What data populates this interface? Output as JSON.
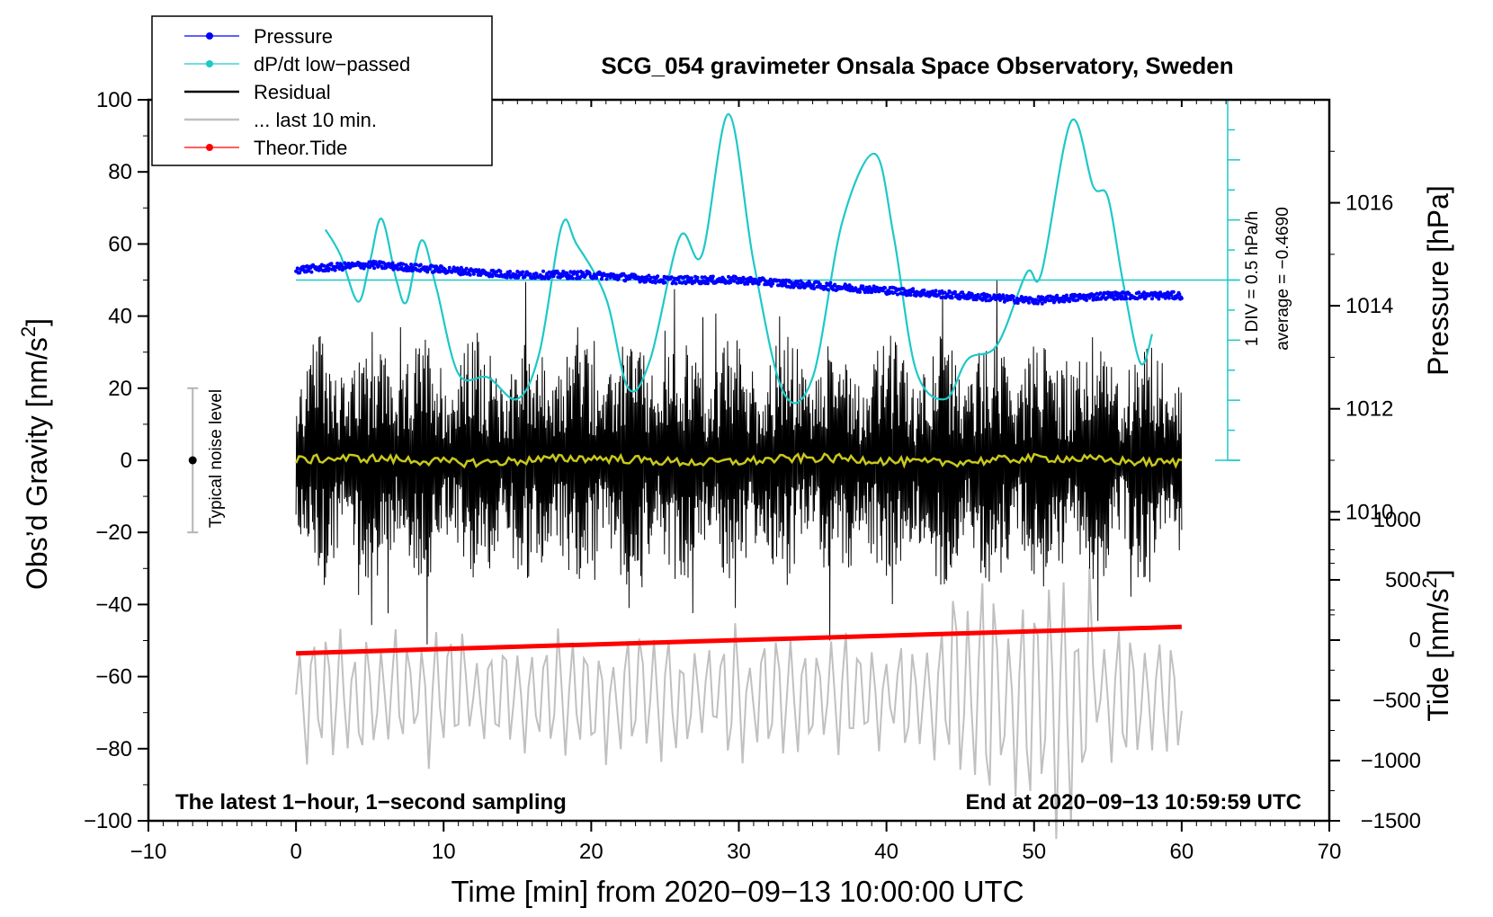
{
  "chart_data": {
    "type": "line",
    "title": "SCG_054 gravimeter Onsala Space Observatory, Sweden",
    "xlabel": "Time [min] from 2020−09−13 10:00:00 UTC",
    "ylabel_prefix": "Obs’d Gravity [nm/s",
    "ylabel_suffix": "]",
    "ylabel_exp": "2",
    "xlim": [
      -10,
      70
    ],
    "ylim": [
      -100,
      100
    ],
    "x_ticks": [
      "−10",
      "0",
      "10",
      "20",
      "30",
      "40",
      "50",
      "60",
      "70"
    ],
    "x_tick_values": [
      -10,
      0,
      10,
      20,
      30,
      40,
      50,
      60,
      70
    ],
    "y_ticks": [
      "100",
      "80",
      "60",
      "40",
      "20",
      "0",
      "−20",
      "−40",
      "−60",
      "−80",
      "−100"
    ],
    "y_tick_values": [
      100,
      80,
      60,
      40,
      20,
      0,
      -20,
      -40,
      -60,
      -80,
      -100
    ],
    "pressure_axis": {
      "label": "Pressure [hPa]",
      "range": [
        1004,
        1018
      ],
      "ticks": [
        "1016",
        "1014",
        "1012",
        "1010"
      ],
      "tick_values": [
        1016,
        1014,
        1012,
        1010
      ]
    },
    "tide_axis": {
      "label_prefix": "Tide [nm/s",
      "label_suffix": "]",
      "label_exp": "2",
      "range": [
        -1500,
        1500
      ],
      "ticks": [
        "1000",
        "500",
        "0",
        "−500",
        "−1000",
        "−1500"
      ],
      "tick_values": [
        1000,
        500,
        0,
        -500,
        -1000,
        -1500
      ]
    },
    "dpdt_scale": {
      "div_label": "1 DIV = 0.5 hPa/h",
      "average_label": "average = −0.4690",
      "zero_line_y": 50,
      "bar_top_y": 100,
      "bar_bottom_y": 0
    },
    "noise_level": {
      "label": "Typical noise level",
      "center": 0,
      "plus_minus": 20
    },
    "legend": [
      {
        "label": "Pressure",
        "color": "#0000ff",
        "marker": true
      },
      {
        "label": "dP/dt low−passed",
        "color": "#1ec8c8",
        "marker": true
      },
      {
        "label": "Residual",
        "color": "#000000",
        "marker": false
      },
      {
        "label": "... last 10 min.",
        "color": "#c0c0c0",
        "marker": false
      },
      {
        "label": "Theor.Tide",
        "color": "#ff0000",
        "marker": true
      }
    ],
    "annotations": {
      "left": "The latest 1−hour, 1−second sampling",
      "right": "End at 2020−09−13 10:59:59 UTC"
    },
    "series": [
      {
        "name": "Pressure",
        "axis": "pressure",
        "color": "#0000ff",
        "x": [
          0,
          5,
          10,
          15,
          20,
          25,
          30,
          35,
          40,
          45,
          50,
          55,
          60
        ],
        "values": [
          1014.7,
          1014.8,
          1014.7,
          1014.6,
          1014.6,
          1014.5,
          1014.5,
          1014.4,
          1014.3,
          1014.2,
          1014.1,
          1014.2,
          1014.2
        ]
      },
      {
        "name": "dP/dt low-passed",
        "axis": "gravity",
        "color": "#1ec8c8",
        "x": [
          2,
          3,
          4.2,
          5,
          5.8,
          6.8,
          7.5,
          8.5,
          9.5,
          11,
          13,
          15,
          16.5,
          18,
          19,
          21,
          22.5,
          24,
          26,
          27.5,
          29.3,
          31,
          33,
          35,
          37,
          39.2,
          40.5,
          42,
          44,
          45.5,
          47.5,
          49.5,
          50.5,
          52.5,
          54,
          55,
          56,
          57.2,
          58
        ],
        "values": [
          64,
          57,
          44,
          55,
          67,
          50,
          44,
          61,
          48,
          24,
          23,
          17,
          30,
          65,
          60,
          45,
          20,
          28,
          62,
          57,
          96,
          55,
          19,
          23,
          66,
          85,
          62,
          25,
          17,
          28,
          32,
          52,
          52,
          94,
          76,
          73,
          50,
          27,
          35
        ]
      },
      {
        "name": "Residual",
        "axis": "gravity",
        "color": "#000000",
        "x_range": [
          0,
          60
        ],
        "amplitude_approx": 35
      },
      {
        "name": "... last 10 min.",
        "axis": "gravity",
        "color": "#c0c0c0",
        "x_range": [
          0,
          60
        ],
        "center_approx": -65,
        "amplitude_approx": 15
      },
      {
        "name": "Theor.Tide",
        "axis": "tide",
        "color": "#ff0000",
        "x": [
          0,
          60
        ],
        "values": [
          -110,
          110
        ]
      },
      {
        "name": "smoothed residual",
        "axis": "gravity",
        "color": "#c8c81e",
        "x_range": [
          0,
          60
        ],
        "center_approx": 0
      }
    ]
  }
}
